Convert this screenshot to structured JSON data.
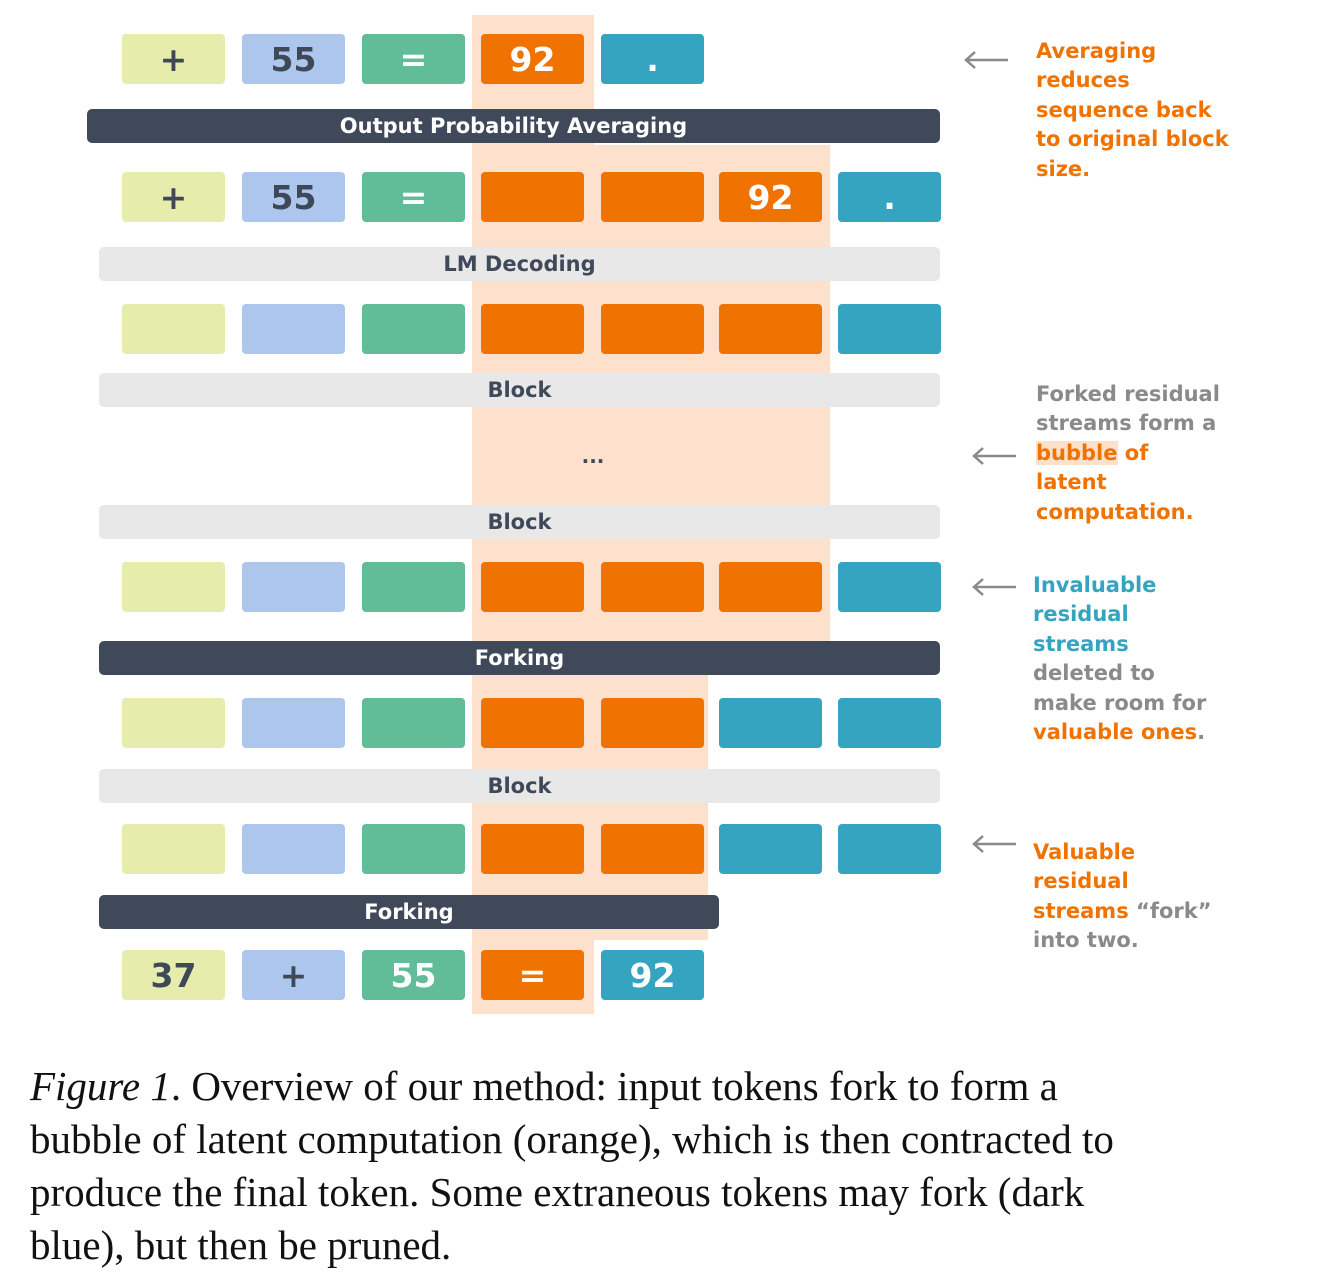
{
  "colors": {
    "bubble": "#fde1cd",
    "token_yellow_green": "#e6ecac",
    "token_light_blue": "#adc6ee",
    "token_green": "#60bd97",
    "token_orange": "#f07200",
    "token_dark_blue": "#35a4c1",
    "dark_bar": "#3f4959",
    "light_bar": "#e8e8e8",
    "note_gray": "#8a8a8a"
  },
  "rows": {
    "top_output": [
      "+",
      "55",
      "=",
      "92",
      "."
    ],
    "after_decoding": [
      "+",
      "55",
      "=",
      "",
      "",
      "92",
      "."
    ],
    "bottom_input": [
      "37",
      "+",
      "55",
      "=",
      "92"
    ]
  },
  "bars": {
    "output_averaging": "Output Probability Averaging",
    "lm_decoding": "LM Decoding",
    "block_1": "Block",
    "block_2": "Block",
    "forking_1": "Forking",
    "block_3": "Block",
    "forking_2": "Forking"
  },
  "ellipsis": "...",
  "annotations": {
    "averaging": [
      "Averaging",
      "reduces",
      "sequence back",
      "to original block",
      "size."
    ],
    "bubble": {
      "line1": "Forked residual",
      "line2": "streams form a",
      "line3_highlight": "bubble",
      "line3_rest": " of",
      "line4": "latent",
      "line5": "computation."
    },
    "invaluable": {
      "line1": "Invaluable",
      "line2": "residual",
      "line3": "streams",
      "line4": "deleted to",
      "line5": "make room for",
      "line6_orange": "valuable ones",
      "line6_end": "."
    },
    "valuable": {
      "line1": "Valuable",
      "line2": "residual",
      "line3_orange": "streams",
      "line3_gray": " “fork”",
      "line4": "into two."
    }
  },
  "caption": {
    "label": "Figure 1",
    "line1_after_label": ".  Overview of our method: input tokens fork to form a",
    "line2": "bubble of latent computation (orange), which is then contracted to",
    "line3": "produce the final token. Some extraneous tokens may fork (dark",
    "line4": "blue), but then be pruned."
  }
}
